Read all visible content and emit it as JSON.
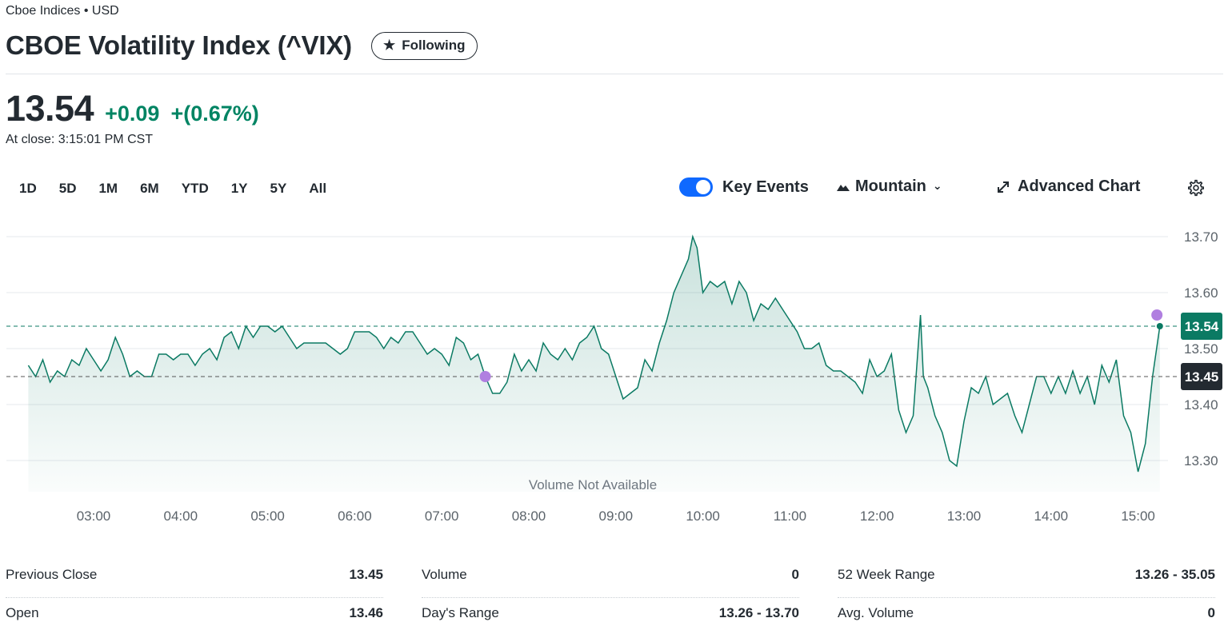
{
  "header": {
    "exchange": "Cboe Indices • USD",
    "title": "CBOE Volatility Index (^VIX)",
    "follow_label": "Following"
  },
  "quote": {
    "price": "13.54",
    "change": "+0.09",
    "change_pct": "+(0.67%)",
    "close_time": "At close: 3:15:01 PM CST",
    "up_color": "#008463"
  },
  "ranges": [
    "1D",
    "5D",
    "1M",
    "6M",
    "YTD",
    "1Y",
    "5Y",
    "All"
  ],
  "toolbar": {
    "key_events_label": "Key Events",
    "key_events_on": true,
    "chart_type_label": "Mountain",
    "advanced_label": "Advanced Chart",
    "icons": [
      "toggle-switch",
      "mountain-icon",
      "chevron-down-icon",
      "expand-icon",
      "gear-icon"
    ]
  },
  "chart_data": {
    "type": "area",
    "title": "",
    "xlabel": "",
    "ylabel": "",
    "volume_note": "Volume Not Available",
    "x_ticks": [
      "03:00",
      "04:00",
      "05:00",
      "06:00",
      "07:00",
      "08:00",
      "09:00",
      "10:00",
      "11:00",
      "12:00",
      "13:00",
      "14:00",
      "15:00"
    ],
    "y_ticks": [
      "13.70",
      "13.60",
      "13.50",
      "13.40",
      "13.30"
    ],
    "ylim": [
      13.26,
      13.7
    ],
    "current_label": "13.54",
    "prev_close_label": "13.45",
    "current_value": 13.54,
    "prev_close_value": 13.45,
    "line_color": "#0b7a63",
    "event_color": "#b07fe0",
    "key_events": [
      {
        "time": "07:30",
        "value": 13.45
      },
      {
        "time": "15:13",
        "value": 13.56
      }
    ],
    "series": [
      {
        "points": [
          [
            "02:15",
            13.47
          ],
          [
            "02:20",
            13.45
          ],
          [
            "02:25",
            13.48
          ],
          [
            "02:30",
            13.44
          ],
          [
            "02:35",
            13.46
          ],
          [
            "02:40",
            13.45
          ],
          [
            "02:45",
            13.48
          ],
          [
            "02:50",
            13.47
          ],
          [
            "02:55",
            13.5
          ],
          [
            "03:00",
            13.48
          ],
          [
            "03:05",
            13.46
          ],
          [
            "03:10",
            13.48
          ],
          [
            "03:15",
            13.52
          ],
          [
            "03:20",
            13.49
          ],
          [
            "03:25",
            13.45
          ],
          [
            "03:30",
            13.46
          ],
          [
            "03:35",
            13.45
          ],
          [
            "03:40",
            13.45
          ],
          [
            "03:45",
            13.49
          ],
          [
            "03:50",
            13.49
          ],
          [
            "03:55",
            13.48
          ],
          [
            "04:00",
            13.49
          ],
          [
            "04:05",
            13.49
          ],
          [
            "04:10",
            13.47
          ],
          [
            "04:15",
            13.49
          ],
          [
            "04:20",
            13.5
          ],
          [
            "04:25",
            13.48
          ],
          [
            "04:30",
            13.52
          ],
          [
            "04:35",
            13.53
          ],
          [
            "04:40",
            13.5
          ],
          [
            "04:45",
            13.54
          ],
          [
            "04:50",
            13.52
          ],
          [
            "04:55",
            13.54
          ],
          [
            "05:00",
            13.54
          ],
          [
            "05:05",
            13.53
          ],
          [
            "05:10",
            13.54
          ],
          [
            "05:15",
            13.52
          ],
          [
            "05:20",
            13.5
          ],
          [
            "05:25",
            13.51
          ],
          [
            "05:30",
            13.51
          ],
          [
            "05:35",
            13.51
          ],
          [
            "05:40",
            13.51
          ],
          [
            "05:45",
            13.5
          ],
          [
            "05:50",
            13.49
          ],
          [
            "05:55",
            13.5
          ],
          [
            "06:00",
            13.53
          ],
          [
            "06:05",
            13.53
          ],
          [
            "06:10",
            13.53
          ],
          [
            "06:15",
            13.52
          ],
          [
            "06:20",
            13.5
          ],
          [
            "06:25",
            13.52
          ],
          [
            "06:30",
            13.51
          ],
          [
            "06:35",
            13.53
          ],
          [
            "06:40",
            13.53
          ],
          [
            "06:45",
            13.51
          ],
          [
            "06:50",
            13.49
          ],
          [
            "06:55",
            13.5
          ],
          [
            "07:00",
            13.49
          ],
          [
            "07:05",
            13.47
          ],
          [
            "07:10",
            13.52
          ],
          [
            "07:15",
            13.51
          ],
          [
            "07:20",
            13.48
          ],
          [
            "07:25",
            13.49
          ],
          [
            "07:30",
            13.45
          ],
          [
            "07:35",
            13.42
          ],
          [
            "07:40",
            13.42
          ],
          [
            "07:45",
            13.44
          ],
          [
            "07:50",
            13.49
          ],
          [
            "07:55",
            13.46
          ],
          [
            "08:00",
            13.48
          ],
          [
            "08:05",
            13.46
          ],
          [
            "08:10",
            13.51
          ],
          [
            "08:15",
            13.49
          ],
          [
            "08:20",
            13.48
          ],
          [
            "08:25",
            13.5
          ],
          [
            "08:30",
            13.48
          ],
          [
            "08:35",
            13.51
          ],
          [
            "08:40",
            13.52
          ],
          [
            "08:45",
            13.54
          ],
          [
            "08:50",
            13.5
          ],
          [
            "08:55",
            13.49
          ],
          [
            "09:00",
            13.45
          ],
          [
            "09:05",
            13.41
          ],
          [
            "09:10",
            13.42
          ],
          [
            "09:15",
            13.43
          ],
          [
            "09:20",
            13.48
          ],
          [
            "09:25",
            13.46
          ],
          [
            "09:30",
            13.51
          ],
          [
            "09:35",
            13.55
          ],
          [
            "09:40",
            13.6
          ],
          [
            "09:45",
            13.63
          ],
          [
            "09:50",
            13.66
          ],
          [
            "09:53",
            13.7
          ],
          [
            "09:56",
            13.68
          ],
          [
            "10:00",
            13.6
          ],
          [
            "10:05",
            13.62
          ],
          [
            "10:10",
            13.61
          ],
          [
            "10:15",
            13.62
          ],
          [
            "10:20",
            13.58
          ],
          [
            "10:25",
            13.62
          ],
          [
            "10:30",
            13.6
          ],
          [
            "10:35",
            13.55
          ],
          [
            "10:40",
            13.58
          ],
          [
            "10:45",
            13.57
          ],
          [
            "10:50",
            13.59
          ],
          [
            "10:55",
            13.57
          ],
          [
            "11:00",
            13.55
          ],
          [
            "11:05",
            13.53
          ],
          [
            "11:10",
            13.5
          ],
          [
            "11:15",
            13.5
          ],
          [
            "11:20",
            13.51
          ],
          [
            "11:25",
            13.47
          ],
          [
            "11:30",
            13.46
          ],
          [
            "11:35",
            13.46
          ],
          [
            "11:40",
            13.45
          ],
          [
            "11:45",
            13.44
          ],
          [
            "11:50",
            13.42
          ],
          [
            "11:55",
            13.48
          ],
          [
            "12:00",
            13.45
          ],
          [
            "12:05",
            13.46
          ],
          [
            "12:10",
            13.49
          ],
          [
            "12:15",
            13.39
          ],
          [
            "12:20",
            13.35
          ],
          [
            "12:25",
            13.38
          ],
          [
            "12:30",
            13.56
          ],
          [
            "12:32",
            13.45
          ],
          [
            "12:35",
            13.43
          ],
          [
            "12:40",
            13.38
          ],
          [
            "12:45",
            13.35
          ],
          [
            "12:50",
            13.3
          ],
          [
            "12:55",
            13.29
          ],
          [
            "13:00",
            13.37
          ],
          [
            "13:05",
            13.43
          ],
          [
            "13:10",
            13.42
          ],
          [
            "13:15",
            13.45
          ],
          [
            "13:20",
            13.4
          ],
          [
            "13:25",
            13.41
          ],
          [
            "13:30",
            13.42
          ],
          [
            "13:35",
            13.38
          ],
          [
            "13:40",
            13.35
          ],
          [
            "13:45",
            13.4
          ],
          [
            "13:50",
            13.45
          ],
          [
            "13:55",
            13.45
          ],
          [
            "14:00",
            13.42
          ],
          [
            "14:05",
            13.45
          ],
          [
            "14:10",
            13.42
          ],
          [
            "14:15",
            13.46
          ],
          [
            "14:20",
            13.42
          ],
          [
            "14:25",
            13.45
          ],
          [
            "14:30",
            13.4
          ],
          [
            "14:35",
            13.47
          ],
          [
            "14:40",
            13.44
          ],
          [
            "14:45",
            13.48
          ],
          [
            "14:50",
            13.38
          ],
          [
            "14:55",
            13.35
          ],
          [
            "15:00",
            13.28
          ],
          [
            "15:05",
            13.33
          ],
          [
            "15:10",
            13.45
          ],
          [
            "15:15",
            13.54
          ]
        ]
      }
    ]
  },
  "stats": [
    [
      {
        "label": "Previous Close",
        "value": "13.45"
      },
      {
        "label": "Open",
        "value": "13.46"
      }
    ],
    [
      {
        "label": "Volume",
        "value": "0"
      },
      {
        "label": "Day's Range",
        "value": "13.26 - 13.70"
      }
    ],
    [
      {
        "label": "52 Week Range",
        "value": "13.26 - 35.05"
      },
      {
        "label": "Avg. Volume",
        "value": "0"
      }
    ]
  ]
}
